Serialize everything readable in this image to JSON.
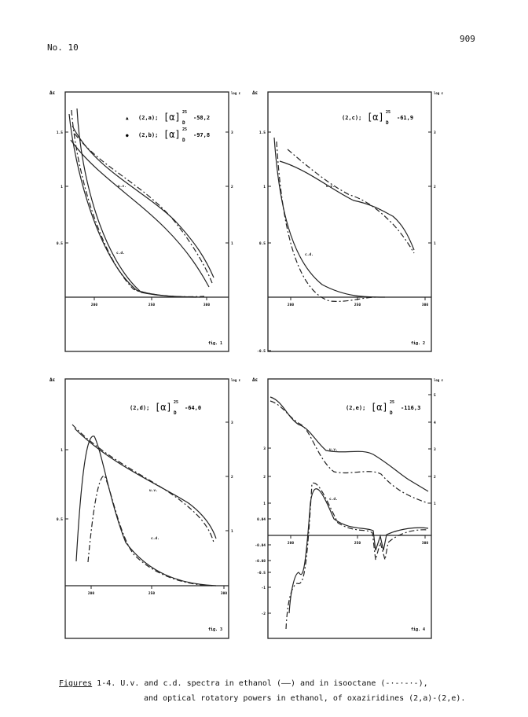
{
  "header": {
    "journal": "No. 10",
    "page_number": "909"
  },
  "figures": [
    {
      "id": "fig1",
      "label": "fig. 1",
      "left_axis_label": "Δε",
      "right_axis_label": "log ε",
      "left_ticks": [
        "1.5",
        "1",
        "0.5"
      ],
      "right_ticks": [
        "3",
        "2",
        "1"
      ],
      "x_ticks": [
        "200",
        "250",
        "300"
      ],
      "legend": [
        {
          "marker": "▲",
          "compound": "(2,a);",
          "value": "-58,2"
        },
        {
          "marker": "●",
          "compound": "(2,b);",
          "value": "-97,8"
        }
      ],
      "curve_labels": [
        "u.v.",
        "c.d."
      ]
    },
    {
      "id": "fig2",
      "label": "fig. 2",
      "left_axis_label": "Δε",
      "right_axis_label": "log ε",
      "left_ticks": [
        "1.5",
        "1",
        "0.5",
        "-0.5"
      ],
      "right_ticks": [
        "3",
        "2",
        "1"
      ],
      "x_ticks": [
        "200",
        "250",
        "300"
      ],
      "legend": [
        {
          "compound": "(2,c);",
          "value": "-61,9"
        }
      ],
      "curve_labels": [
        "u.v.",
        "c.d."
      ]
    },
    {
      "id": "fig3",
      "label": "fig. 3",
      "left_axis_label": "Δε",
      "right_axis_label": "log ε",
      "left_ticks": [
        "1",
        "0.5"
      ],
      "right_ticks": [
        "3",
        "2",
        "1"
      ],
      "x_ticks": [
        "200",
        "250",
        "300"
      ],
      "legend": [
        {
          "compound": "(2,d);",
          "value": "-64,0"
        }
      ],
      "curve_labels": [
        "u.v.",
        "c.d."
      ]
    },
    {
      "id": "fig4",
      "label": "fig. 4",
      "left_axis_label": "Δε",
      "right_axis_label": "log ε",
      "left_ticks": [
        "3",
        "2",
        "1",
        "0.04",
        "-0.04",
        "-0.08",
        "-0.5",
        "-1",
        "-2"
      ],
      "right_ticks": [
        "5",
        "4",
        "3",
        "2",
        "1"
      ],
      "x_ticks": [
        "200",
        "250",
        "300"
      ],
      "legend": [
        {
          "compound": "(2,e);",
          "value": "-116,3"
        }
      ],
      "curve_labels": [
        "u.v.",
        "c.d."
      ]
    }
  ],
  "rotation_symbol": {
    "alpha": "[α]",
    "sup": "25",
    "sub": "D"
  },
  "caption": {
    "lead": "Figures",
    "line1_rest": " 1-4. U.v. and c.d. spectra in ethanol (——) and in isooctane (-·-·-·-),",
    "line2": "and optical rotatory powers in ethanol, of oxaziridines (2,a)-(2,e)."
  }
}
